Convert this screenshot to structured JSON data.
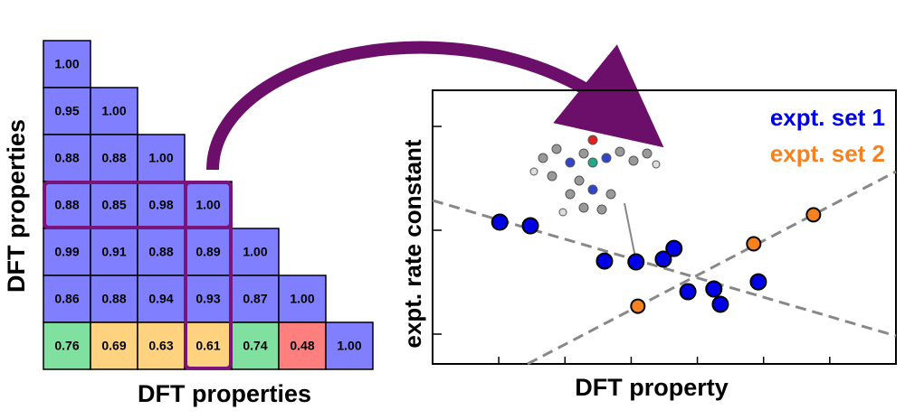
{
  "chart_data": [
    {
      "type": "heatmap",
      "x_label": "DFT properties",
      "y_label": "DFT properties",
      "values": [
        [
          1.0
        ],
        [
          0.95,
          1.0
        ],
        [
          0.88,
          0.88,
          1.0
        ],
        [
          0.88,
          0.85,
          0.98,
          1.0
        ],
        [
          0.99,
          0.91,
          0.88,
          0.89,
          1.0
        ],
        [
          0.86,
          0.88,
          0.94,
          0.93,
          0.87,
          1.0
        ],
        [
          0.76,
          0.69,
          0.63,
          0.61,
          0.74,
          0.48,
          1.0
        ]
      ],
      "value_labels": [
        [
          "1.00"
        ],
        [
          "0.95",
          "1.00"
        ],
        [
          "0.88",
          "0.88",
          "1.00"
        ],
        [
          "0.88",
          "0.85",
          "0.98",
          "1.00"
        ],
        [
          "0.99",
          "0.91",
          "0.88",
          "0.89",
          "1.00"
        ],
        [
          "0.86",
          "0.88",
          "0.94",
          "0.93",
          "0.87",
          "1.00"
        ],
        [
          "0.76",
          "0.69",
          "0.63",
          "0.61",
          "0.74",
          "0.48",
          "1.00"
        ]
      ],
      "colors": [
        [
          "#7f7fff"
        ],
        [
          "#7f7fff",
          "#7f7fff"
        ],
        [
          "#7f7fff",
          "#7f7fff",
          "#7f7fff"
        ],
        [
          "#7f7fff",
          "#7f7fff",
          "#7f7fff",
          "#7f7fff"
        ],
        [
          "#7f7fff",
          "#7f7fff",
          "#7f7fff",
          "#7f7fff",
          "#7f7fff"
        ],
        [
          "#7f7fff",
          "#7f7fff",
          "#7f7fff",
          "#7f7fff",
          "#7f7fff",
          "#7f7fff"
        ],
        [
          "#80e0a0",
          "#ffd27f",
          "#ffd27f",
          "#ffd27f",
          "#80e0a0",
          "#ff7f7f",
          "#7f7fff"
        ]
      ]
    },
    {
      "type": "scatter",
      "x_label": "DFT property",
      "y_label": "expt. rate constant",
      "xlim": [
        0,
        100
      ],
      "ylim": [
        0,
        100
      ],
      "series": [
        {
          "name": "expt. set 1",
          "color": "#0000e6",
          "x": [
            14.5,
            21.1,
            37.1,
            43.9,
            49.8,
            52.1,
            55.1,
            60.7,
            62.1,
            70.3
          ],
          "values": [
            51.8,
            50.5,
            37.6,
            37.3,
            38.3,
            42.2,
            26.4,
            27.4,
            21.8,
            30.0
          ]
        },
        {
          "name": "expt. set 2",
          "color": "#f5821f",
          "x": [
            44.3,
            69.3,
            82.2
          ],
          "values": [
            21.1,
            43.9,
            54.5
          ]
        }
      ]
    }
  ]
}
